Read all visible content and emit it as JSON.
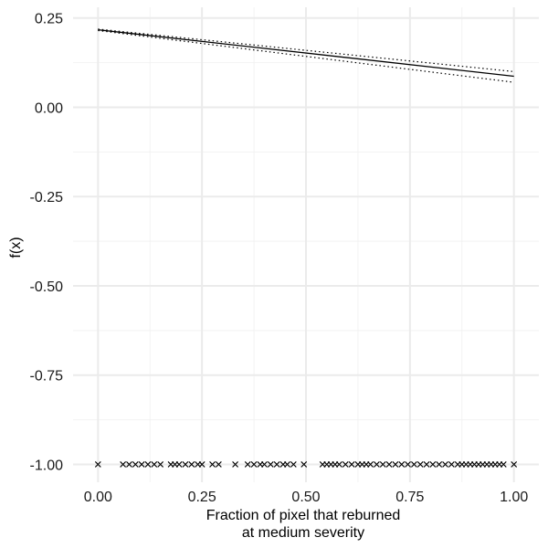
{
  "chart_data": {
    "type": "line",
    "title": "",
    "xlabel_lines": [
      "Fraction of pixel that reburned",
      "at medium severity"
    ],
    "ylabel": "f(x)",
    "xlim": [
      -0.06,
      1.06
    ],
    "ylim": [
      -1.05,
      0.28
    ],
    "x_ticks": [
      0,
      0.25,
      0.5,
      0.75,
      1
    ],
    "x_tick_labels": [
      "0.00",
      "0.25",
      "0.50",
      "0.75",
      "1.00"
    ],
    "y_ticks": [
      0.25,
      0,
      -0.25,
      -0.5,
      -0.75,
      -1
    ],
    "y_tick_labels": [
      "0.25",
      "0.00",
      "-0.25",
      "-0.50",
      "-0.75",
      "-1.00"
    ],
    "grid": true,
    "fit_line": {
      "x": [
        0,
        1
      ],
      "y": [
        0.217,
        0.087
      ]
    },
    "upper_band": {
      "x": [
        0,
        1
      ],
      "y": [
        0.219,
        0.1
      ]
    },
    "lower_band": {
      "x": [
        0,
        1
      ],
      "y": [
        0.215,
        0.07
      ]
    },
    "rug_y": -1.0,
    "rug_x": [
      0.0,
      0.06,
      0.075,
      0.09,
      0.105,
      0.12,
      0.135,
      0.15,
      0.175,
      0.185,
      0.195,
      0.21,
      0.225,
      0.24,
      0.25,
      0.275,
      0.29,
      0.33,
      0.36,
      0.375,
      0.39,
      0.4,
      0.415,
      0.43,
      0.445,
      0.455,
      0.47,
      0.495,
      0.54,
      0.55,
      0.56,
      0.57,
      0.58,
      0.595,
      0.61,
      0.625,
      0.635,
      0.645,
      0.655,
      0.67,
      0.685,
      0.7,
      0.715,
      0.73,
      0.745,
      0.76,
      0.775,
      0.79,
      0.805,
      0.82,
      0.835,
      0.85,
      0.865,
      0.875,
      0.885,
      0.895,
      0.905,
      0.915,
      0.925,
      0.935,
      0.945,
      0.955,
      0.965,
      0.975,
      1.0
    ]
  }
}
